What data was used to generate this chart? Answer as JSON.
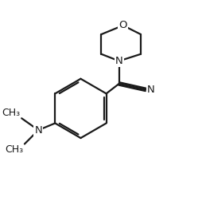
{
  "bg_color": "#ffffff",
  "line_color": "#1a1a1a",
  "line_width": 1.6,
  "font_size": 9.5,
  "figsize": [
    2.55,
    2.52
  ],
  "dpi": 100,
  "xlim": [
    0,
    10
  ],
  "ylim": [
    0,
    10
  ]
}
